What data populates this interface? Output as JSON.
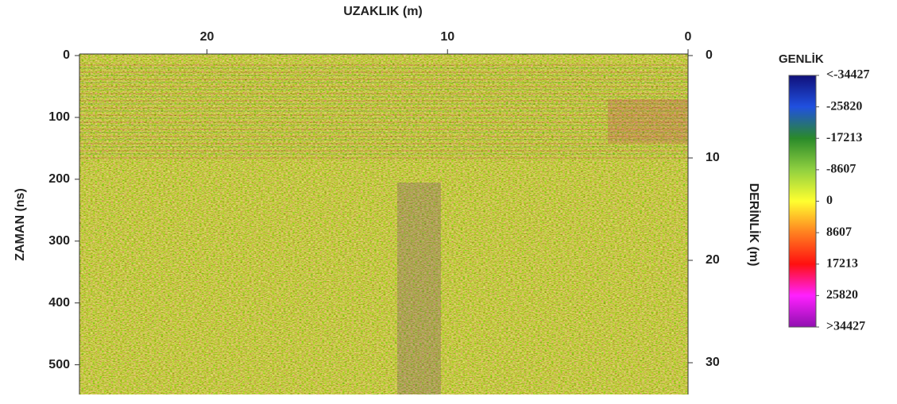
{
  "chart_data": {
    "type": "radargram",
    "xlabel": "UZAKLIK (m)",
    "ylabel": "ZAMAN (ns)",
    "y2label": "DERİNLİK (m)",
    "xlim": [
      25.3,
      0
    ],
    "xticks": [
      20,
      10,
      0
    ],
    "ylim": [
      0,
      548
    ],
    "yticks": [
      0,
      100,
      200,
      300,
      400,
      500
    ],
    "y2lim": [
      0,
      33.1
    ],
    "y2ticks": [
      0,
      10,
      20,
      30
    ],
    "colorbar": {
      "title": "GENLİK",
      "lim": [
        -34427,
        34427
      ],
      "colors": [
        "#10107a",
        "#2050e0",
        "#2a8a2a",
        "#90d040",
        "#ffff30",
        "#ff8020",
        "#ff1010",
        "#ff20ff",
        "#9010b0"
      ],
      "ticks": [
        {
          "value": -34427,
          "label": "<-34427"
        },
        -25820,
        -17213,
        -8607,
        0,
        8607,
        17213,
        25820,
        {
          "value": 34427,
          "label": ">34427"
        }
      ]
    }
  }
}
